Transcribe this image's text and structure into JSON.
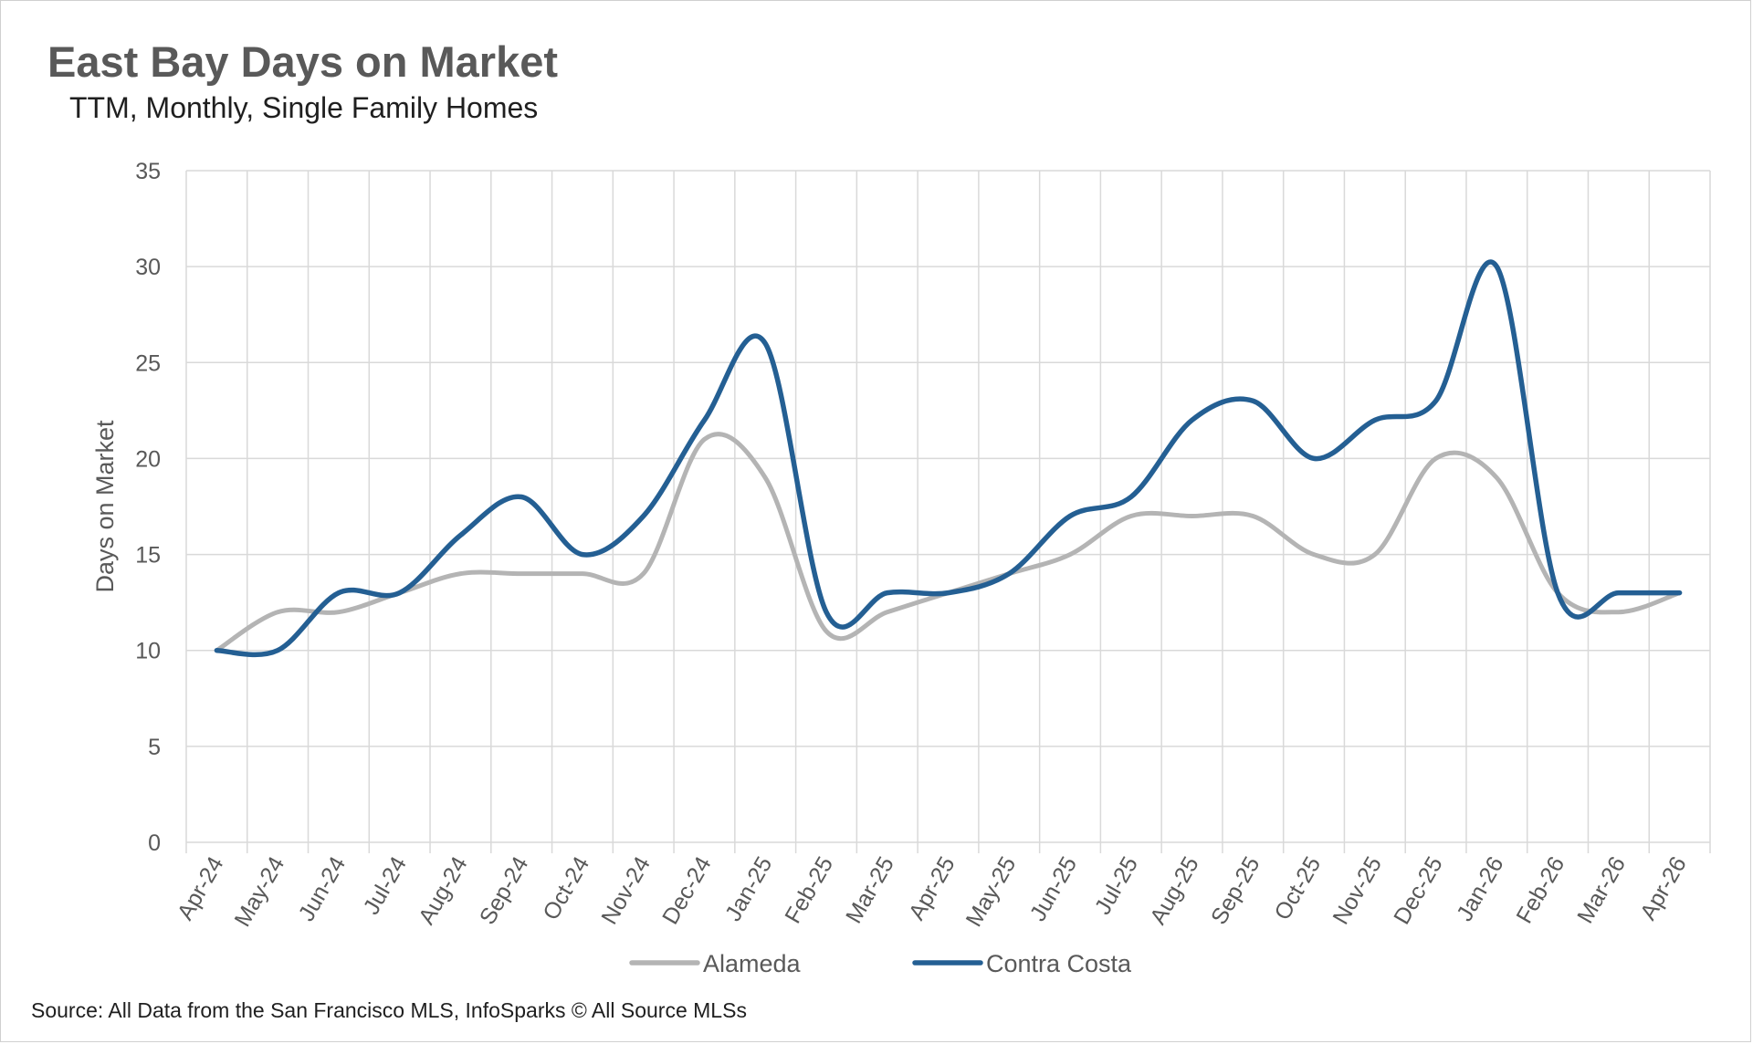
{
  "title": "East Bay Days on Market",
  "subtitle": "TTM, Monthly, Single Family Homes",
  "source": "Source: All Data from the San Francisco MLS, InfoSparks © All Source MLSs",
  "chart_data": {
    "type": "line",
    "title": "East Bay Days on Market",
    "subtitle": "TTM, Monthly, Single Family Homes",
    "xlabel": "",
    "ylabel": "Days on Market",
    "ylim": [
      0,
      35
    ],
    "yticks": [
      0,
      5,
      10,
      15,
      20,
      25,
      30,
      35
    ],
    "grid": true,
    "legend_position": "bottom",
    "categories": [
      "Apr-24",
      "May-24",
      "Jun-24",
      "Jul-24",
      "Aug-24",
      "Sep-24",
      "Oct-24",
      "Nov-24",
      "Dec-24",
      "Jan-25",
      "Feb-25",
      "Mar-25",
      "Apr-25",
      "May-25",
      "Jun-25",
      "Jul-25",
      "Aug-25",
      "Sep-25",
      "Oct-25",
      "Nov-25",
      "Dec-25",
      "Jan-26",
      "Feb-26",
      "Mar-26",
      "Apr-26"
    ],
    "series": [
      {
        "name": "Alameda",
        "color": "#b4b4b4",
        "values": [
          10,
          12,
          12,
          13,
          14,
          14,
          14,
          14,
          21,
          19,
          11,
          12,
          13,
          14,
          15,
          17,
          17,
          17,
          15,
          15,
          20,
          19,
          13,
          12,
          13
        ]
      },
      {
        "name": "Contra Costa",
        "color": "#245f93",
        "values": [
          10,
          10,
          13,
          13,
          16,
          18,
          15,
          17,
          22,
          26,
          12,
          13,
          13,
          14,
          17,
          18,
          22,
          23,
          20,
          22,
          23,
          30,
          13,
          13,
          13
        ]
      }
    ]
  }
}
